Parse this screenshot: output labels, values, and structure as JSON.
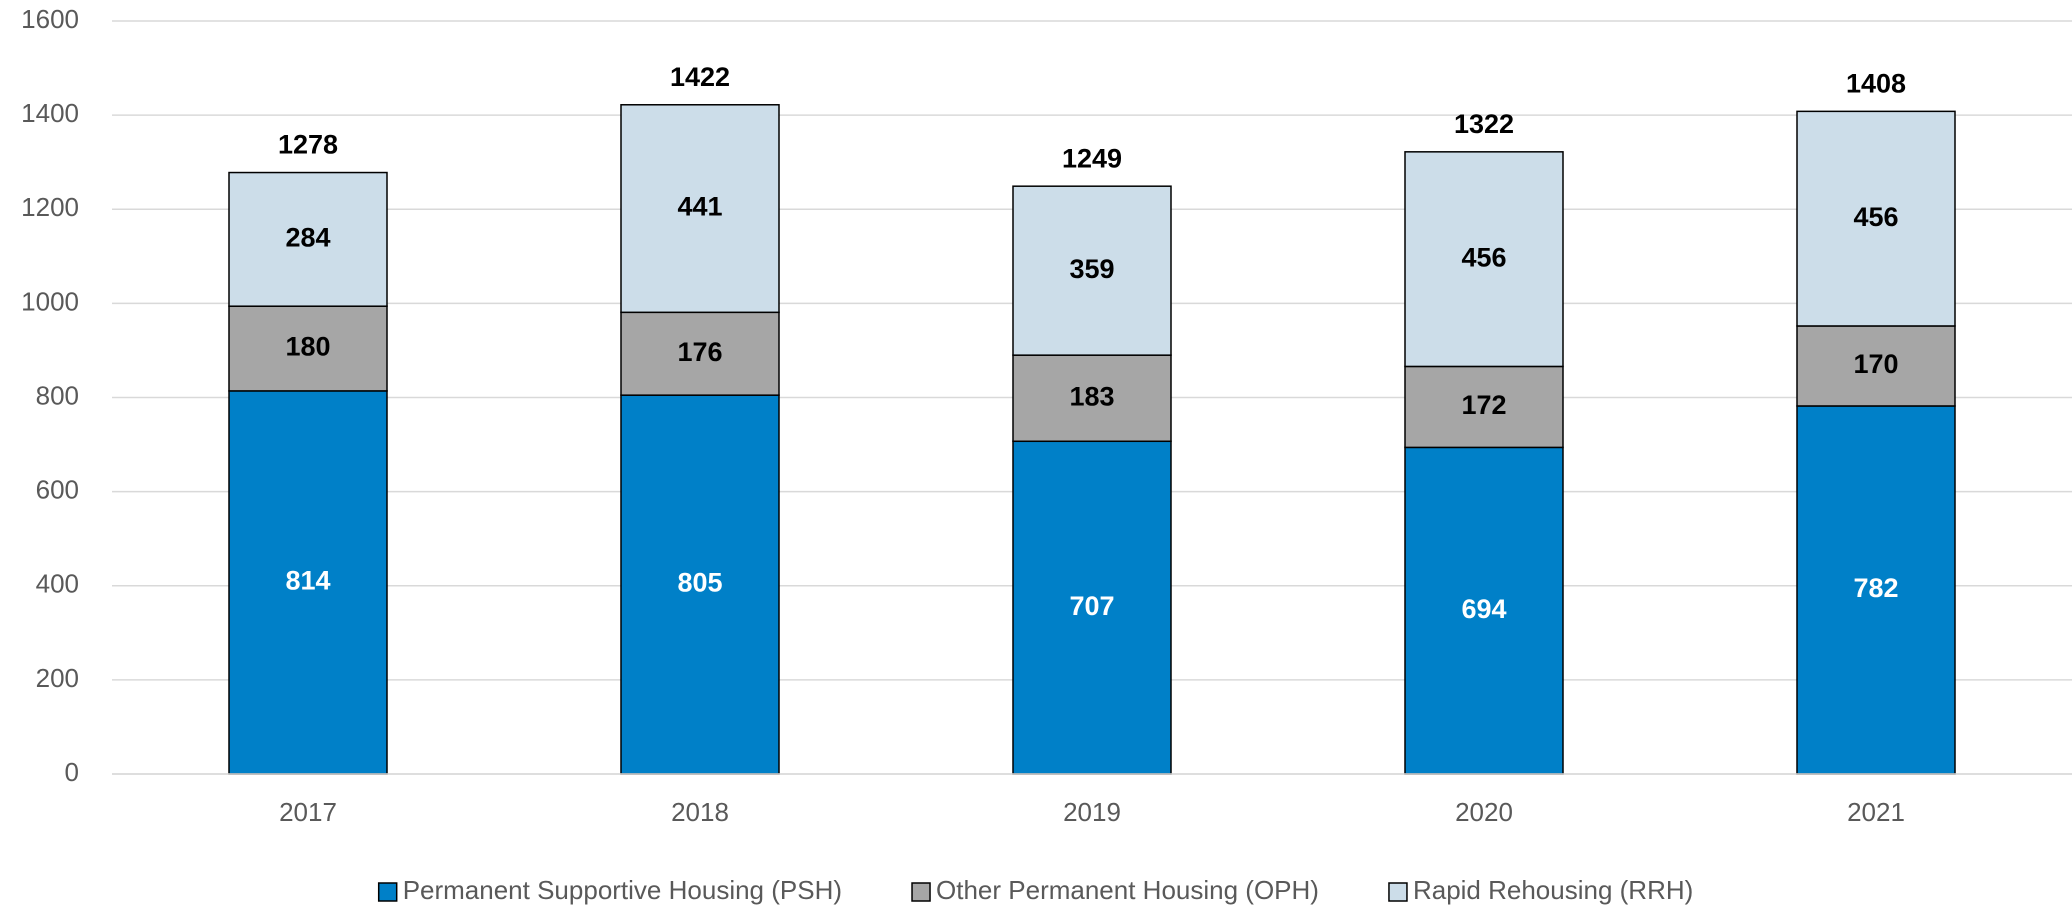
{
  "chart_data": {
    "type": "stacked_bar",
    "categories": [
      "2017",
      "2018",
      "2019",
      "2020",
      "2021"
    ],
    "series": [
      {
        "name": "Permanent Supportive Housing (PSH)",
        "color": "#0080c8",
        "label_color": "#ffffff",
        "values": [
          814,
          805,
          707,
          694,
          782
        ]
      },
      {
        "name": "Other Permanent Housing (OPH)",
        "color": "#a6a6a6",
        "label_color": "#000000",
        "values": [
          180,
          176,
          183,
          172,
          170
        ]
      },
      {
        "name": "Rapid Rehousing (RRH)",
        "color": "#ccdde9",
        "label_color": "#000000",
        "values": [
          284,
          441,
          359,
          456,
          456
        ]
      }
    ],
    "totals": [
      1278,
      1422,
      1249,
      1322,
      1408
    ],
    "ylim": [
      0,
      1600
    ],
    "yticks": [
      0,
      200,
      400,
      600,
      800,
      1000,
      1200,
      1400,
      1600
    ],
    "grid": true,
    "legend": "bottom"
  }
}
